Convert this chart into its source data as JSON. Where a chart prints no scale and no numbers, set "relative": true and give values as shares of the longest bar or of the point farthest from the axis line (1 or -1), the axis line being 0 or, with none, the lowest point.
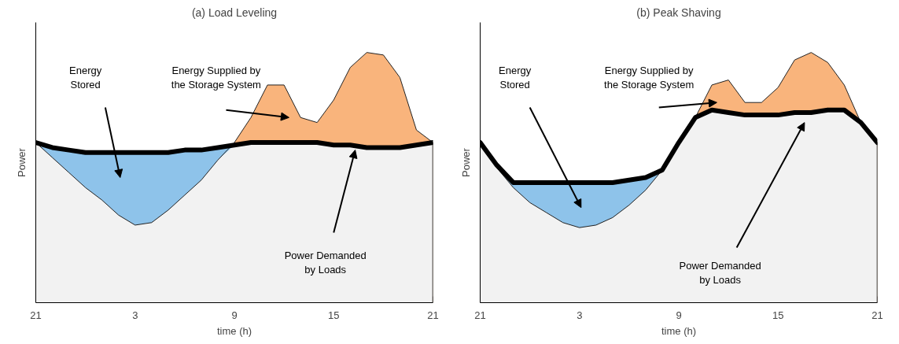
{
  "chart_data": [
    {
      "type": "area",
      "title": "(a) Load Leveling",
      "xlabel": "time (h)",
      "ylabel": "Power",
      "relative": true,
      "categories": [
        "21",
        null,
        null,
        null,
        null,
        null,
        "3",
        null,
        null,
        null,
        null,
        null,
        "9",
        null,
        null,
        null,
        null,
        null,
        "15",
        null,
        null,
        null,
        null,
        null,
        "21"
      ],
      "series": [
        {
          "colors": [
            "#f9b47c",
            "#8ec3ea",
            "#8ec3ea",
            "#8ec3ea",
            "#8ec3ea",
            "#8ec3ea",
            "#8ec3ea",
            "#8ec3ea",
            "#8ec3ea",
            "#8ec3ea",
            "#8ec3ea",
            "#8ec3ea",
            "#f9b47c",
            "#f9b47c",
            "#f9b47c",
            "#f9b47c",
            "#f9b47c",
            "#f9b47c",
            "#f9b47c",
            "#f9b47c",
            "#f9b47c",
            "#f9b47c",
            "#f9b47c",
            "#f9b47c",
            "#f9b47c"
          ],
          "values": [
            0.64,
            0.58,
            0.52,
            0.46,
            0.41,
            0.35,
            0.31,
            0.32,
            0.37,
            0.43,
            0.49,
            0.57,
            0.64,
            0.74,
            0.87,
            0.87,
            0.74,
            0.72,
            0.81,
            0.94,
            1.0,
            0.99,
            0.9,
            0.69,
            0.64
          ],
          "lower": [
            0.64,
            0.58,
            0.52,
            0.46,
            0.41,
            0.35,
            0.31,
            0.32,
            0.37,
            0.43,
            0.49,
            0.57,
            0.63,
            null,
            null,
            null,
            null,
            null,
            null,
            null,
            null,
            null,
            null,
            null,
            null
          ],
          "upper": [
            0.64,
            0.62,
            0.61,
            0.6,
            0.6,
            0.6,
            0.6,
            0.6,
            0.6,
            0.61,
            0.61,
            0.62,
            0.63,
            null,
            null,
            null,
            null,
            null,
            null,
            null,
            null,
            null,
            null,
            null,
            null
          ]
        },
        {
          "color": "#f2f2f2",
          "values": [
            0.64,
            0.62,
            0.61,
            0.6,
            0.6,
            0.6,
            0.6,
            0.6,
            0.6,
            0.61,
            0.61,
            0.62,
            0.63,
            0.64,
            0.64,
            0.64,
            0.64,
            0.64,
            0.63,
            0.63,
            0.62,
            0.62,
            0.62,
            0.63,
            0.64
          ]
        }
      ],
      "annotations": [
        "Energy\nStored",
        "Energy Supplied by\nthe Storage System",
        "Power Demanded\nby Loads"
      ],
      "grid": false
    },
    {
      "type": "area",
      "title": "(b) Peak Shaving",
      "xlabel": "time (h)",
      "ylabel": "Power",
      "relative": true,
      "categories": [
        "21",
        null,
        null,
        null,
        null,
        null,
        "3",
        null,
        null,
        null,
        null,
        null,
        "9",
        null,
        null,
        null,
        null,
        null,
        "15",
        null,
        null,
        null,
        null,
        null,
        "21"
      ],
      "series": [
        {
          "colors": [
            "#f9b47c",
            "#8ec3ea",
            "#8ec3ea",
            "#8ec3ea",
            "#8ec3ea",
            "#8ec3ea",
            "#8ec3ea",
            "#8ec3ea",
            "#8ec3ea",
            "#8ec3ea",
            "#8ec3ea",
            "#8ec3ea",
            "#f9b47c",
            "#f9b47c",
            "#f9b47c",
            "#f9b47c",
            "#f9b47c",
            "#f9b47c",
            "#f9b47c",
            "#f9b47c",
            "#f9b47c",
            "#f9b47c",
            "#f9b47c",
            "#f9b47c",
            "#f9b47c"
          ],
          "values": [
            0.64,
            0.54,
            0.46,
            0.4,
            0.36,
            0.32,
            0.3,
            0.31,
            0.34,
            0.39,
            0.45,
            0.53,
            0.64,
            0.74,
            0.87,
            0.89,
            0.8,
            0.8,
            0.86,
            0.97,
            1.0,
            0.96,
            0.87,
            0.72,
            0.64
          ],
          "lower": [
            0.64,
            0.54,
            0.46,
            0.4,
            0.36,
            0.32,
            0.3,
            0.31,
            0.34,
            0.39,
            0.45,
            0.53,
            null,
            null,
            null,
            null,
            null,
            null,
            null,
            null,
            null,
            null,
            null,
            null,
            null
          ],
          "upper": [
            0.64,
            0.55,
            0.48,
            0.48,
            0.48,
            0.48,
            0.48,
            0.48,
            0.48,
            0.49,
            0.5,
            0.53,
            null,
            null,
            null,
            null,
            null,
            null,
            null,
            null,
            null,
            null,
            null,
            null,
            null
          ]
        },
        {
          "color": "#f2f2f2",
          "values": [
            0.64,
            0.55,
            0.48,
            0.48,
            0.48,
            0.48,
            0.48,
            0.48,
            0.48,
            0.49,
            0.5,
            0.53,
            0.64,
            0.74,
            0.77,
            0.76,
            0.75,
            0.75,
            0.75,
            0.76,
            0.76,
            0.77,
            0.77,
            0.72,
            0.64
          ]
        }
      ],
      "annotations": [
        "Energy\nStored",
        "Energy Supplied by\nthe Storage System",
        "Power Demanded\nby Loads"
      ],
      "grid": false
    }
  ]
}
